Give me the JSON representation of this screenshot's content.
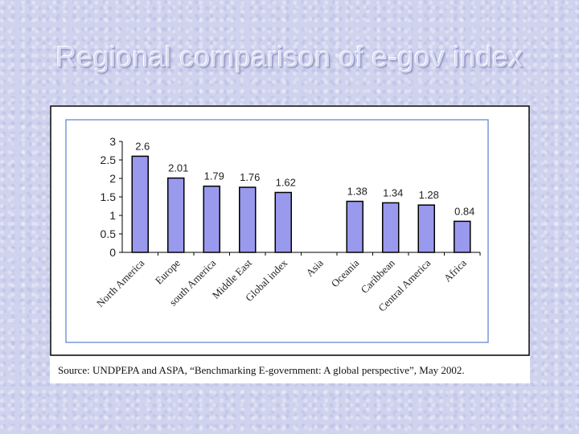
{
  "slide": {
    "title": "Regional comparison of e-gov index"
  },
  "source_note": "Source: UNDPEPA and ASPA, “Benchmarking E-government: A global perspective”, May 2002.",
  "colors": {
    "bar_fill": "#9999ee",
    "bar_stroke": "#000000",
    "plot_border": "#5b7fd0",
    "frame_border": "#000000"
  },
  "chart_data": {
    "type": "bar",
    "title": "",
    "xlabel": "",
    "ylabel": "",
    "ylim": [
      0,
      3
    ],
    "yticks": [
      "3",
      "2.5",
      "2",
      "1.5",
      "1",
      "0.5",
      "0"
    ],
    "ytick_values": [
      3,
      2.5,
      2,
      1.5,
      1,
      0.5,
      0
    ],
    "grid": false,
    "categories": [
      "North America",
      "Europe",
      "south America",
      "Middle East",
      "Global index",
      "Asia",
      "Oceania",
      "Caribbean",
      "Central America",
      "Africa"
    ],
    "values": [
      2.6,
      2.01,
      1.79,
      1.76,
      1.62,
      null,
      1.38,
      1.34,
      1.28,
      0.84
    ],
    "data_labels": [
      "2.6",
      "2.01",
      "1.79",
      "1.76",
      "1.62",
      "",
      "1.38",
      "1.34",
      "1.28",
      "0.84"
    ]
  }
}
